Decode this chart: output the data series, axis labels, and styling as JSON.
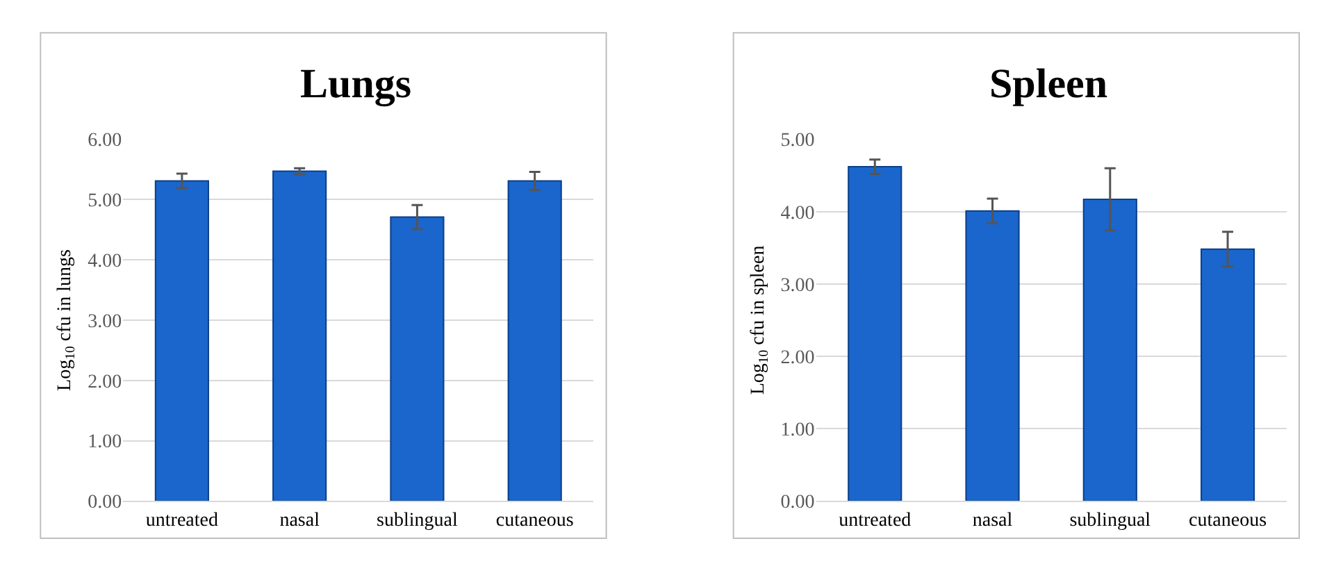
{
  "chart_data": [
    {
      "type": "bar",
      "title": "Lungs",
      "ylabel": "Log$_{10}$ cfu in lungs",
      "categories": [
        "untreated",
        "nasal",
        "sublingual",
        "cutaneous"
      ],
      "series": [
        {
          "color": "#1a66cc",
          "values": [
            5.31,
            5.47,
            4.71,
            5.31
          ],
          "errors": [
            0.12,
            0.05,
            0.2,
            0.15
          ]
        }
      ],
      "ylim": [
        0,
        6
      ],
      "yticks": [
        {
          "value": 0,
          "label": "0.00"
        },
        {
          "value": 1,
          "label": "1.00"
        },
        {
          "value": 2,
          "label": "2.00"
        },
        {
          "value": 3,
          "label": "3.00"
        },
        {
          "value": 4,
          "label": "4.00"
        },
        {
          "value": 5,
          "label": "5.00"
        },
        {
          "value": 6,
          "label": "6.00"
        }
      ],
      "grid": "y"
    },
    {
      "type": "bar",
      "title": "Spleen",
      "ylabel": "Log$_{10}$ cfu in spleen",
      "categories": [
        "untreated",
        "nasal",
        "sublingual",
        "cutaneous"
      ],
      "series": [
        {
          "color": "#1a66cc",
          "values": [
            4.62,
            4.01,
            4.17,
            3.48
          ],
          "errors": [
            0.1,
            0.17,
            0.43,
            0.24
          ]
        }
      ],
      "ylim": [
        0,
        5
      ],
      "yticks": [
        {
          "value": 0,
          "label": "0.00"
        },
        {
          "value": 1,
          "label": "1.00"
        },
        {
          "value": 2,
          "label": "2.00"
        },
        {
          "value": 3,
          "label": "3.00"
        },
        {
          "value": 4,
          "label": "4.00"
        },
        {
          "value": 5,
          "label": "5.00"
        }
      ],
      "grid": "y"
    }
  ]
}
